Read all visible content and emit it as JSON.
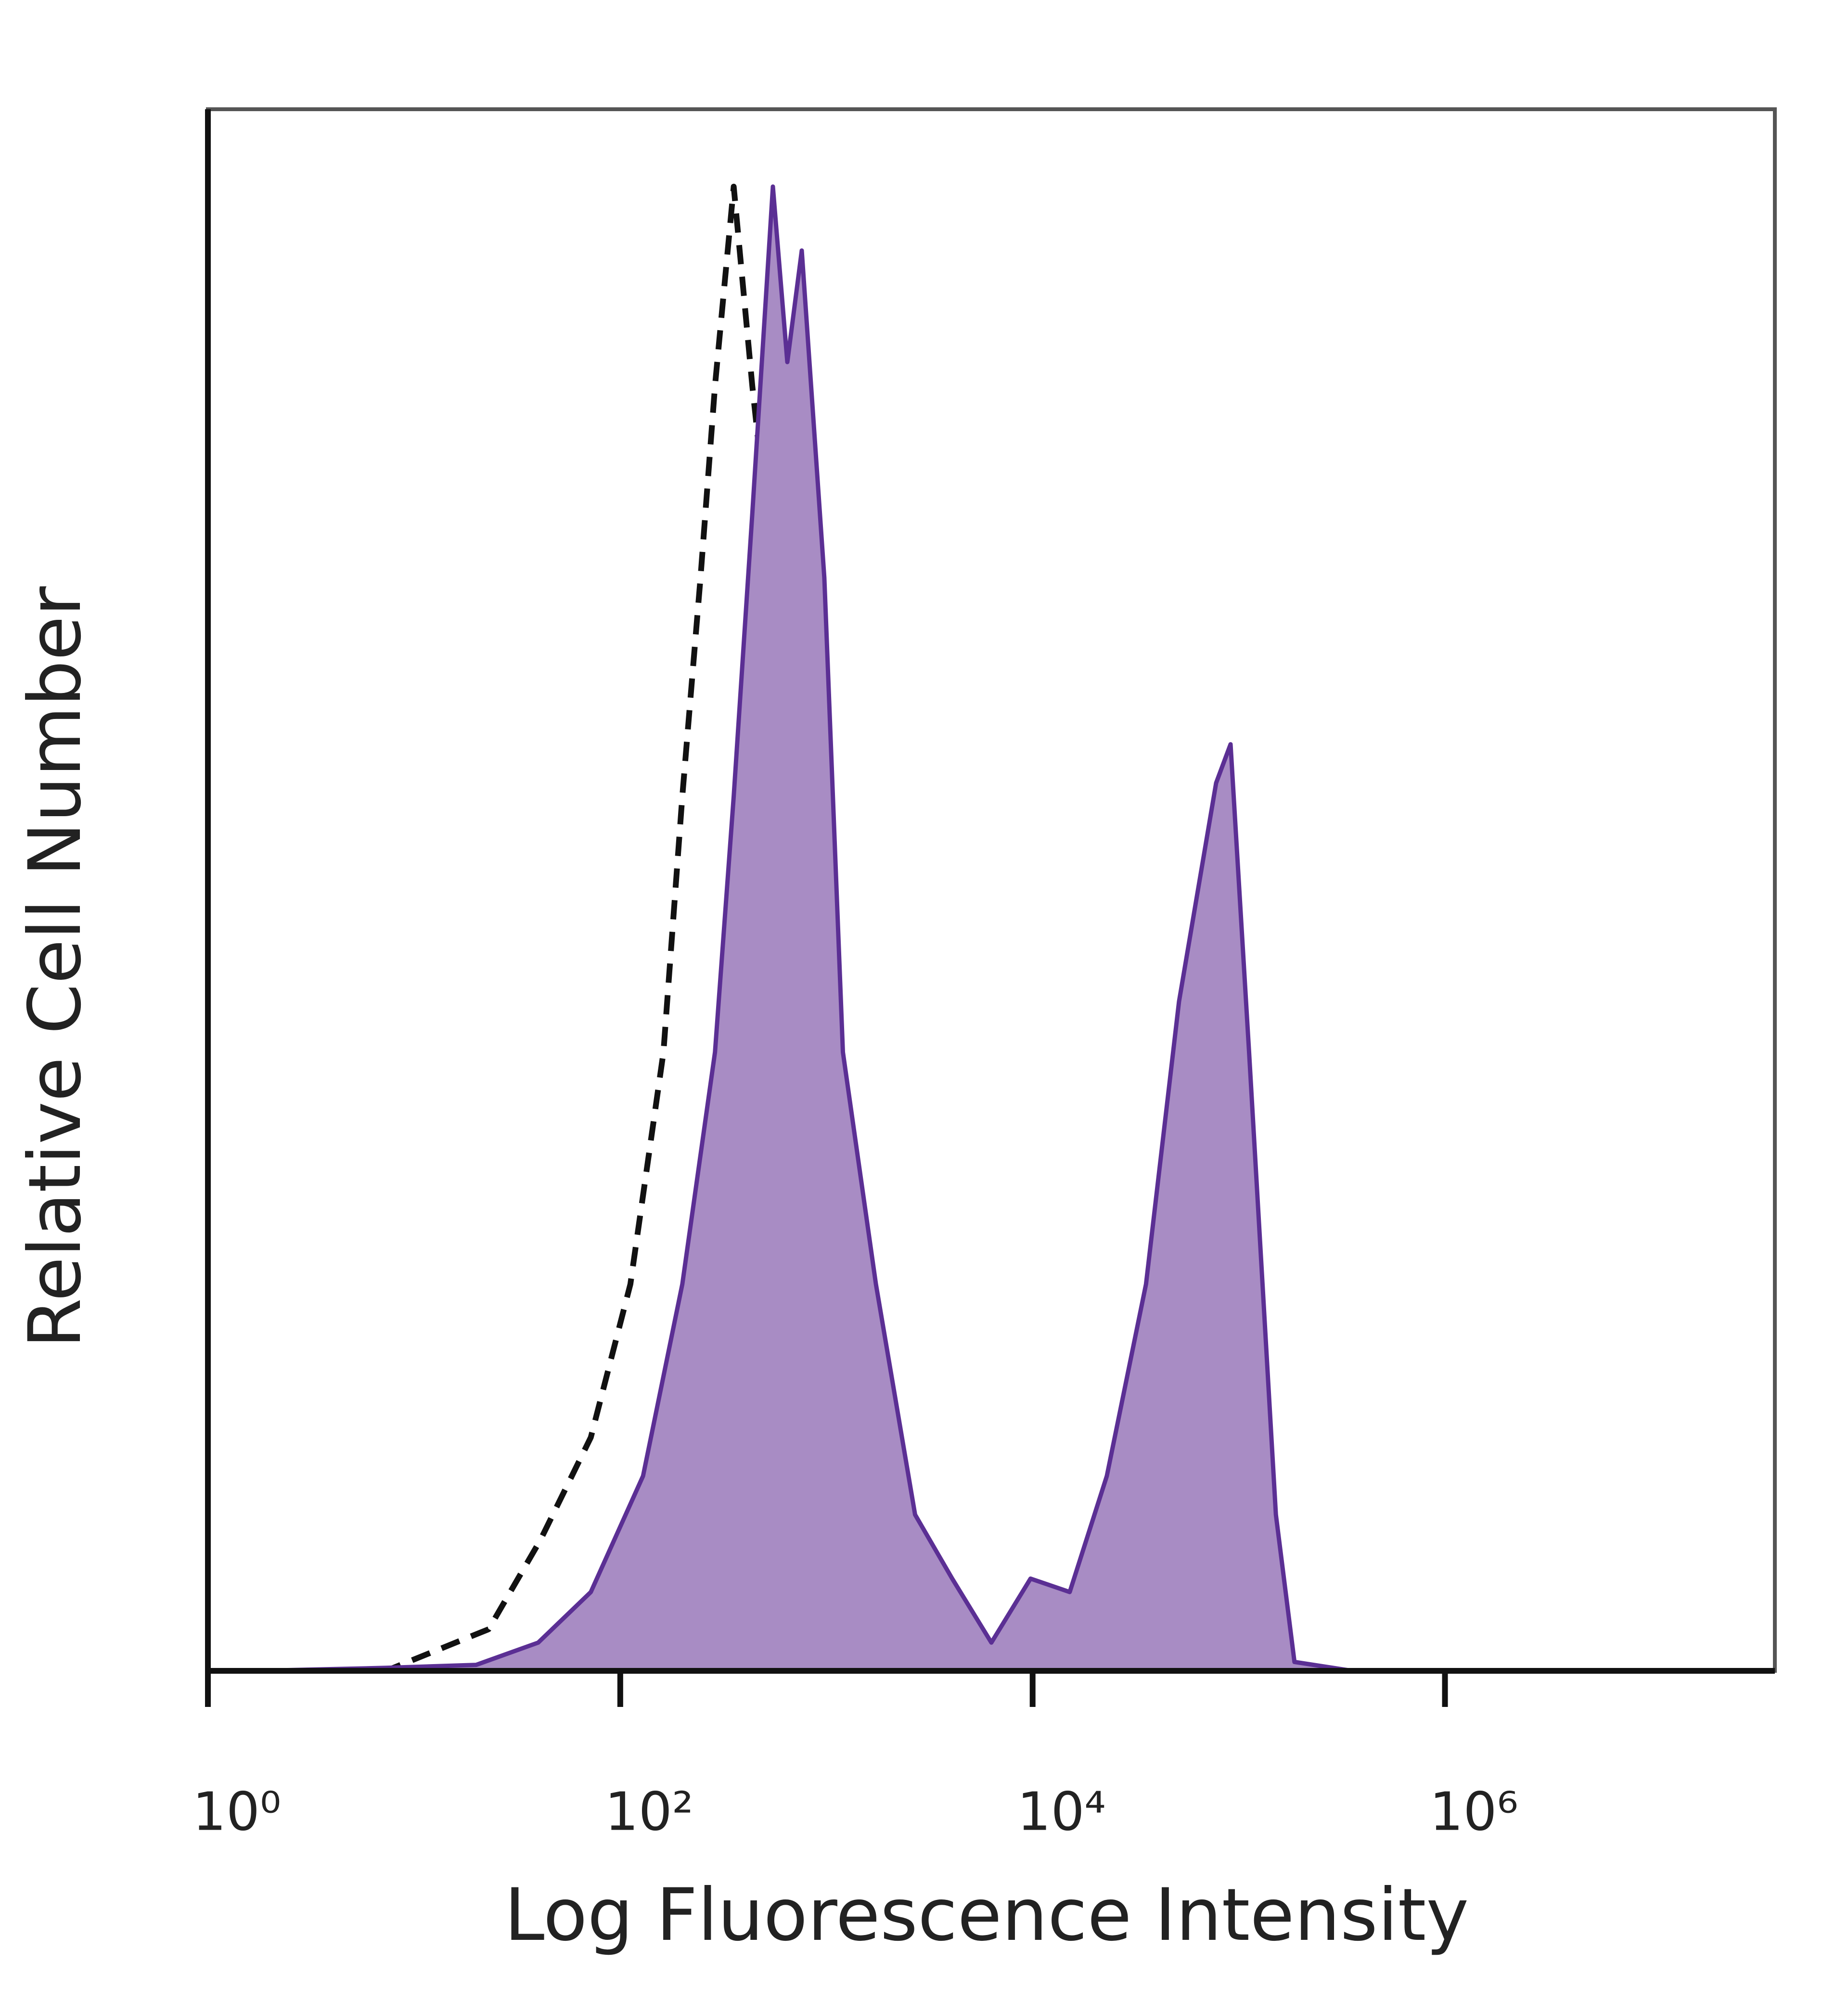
{
  "chart_data": {
    "type": "histogram-overlay",
    "xlabel": "Log Fluorescence Intensity",
    "ylabel": "Relative Cell Number",
    "xscale": "log",
    "xlim": [
      1,
      39810717
    ],
    "ylim": [
      0,
      105
    ],
    "xticks": [
      {
        "value": 1,
        "label": "10⁰"
      },
      {
        "value": 100,
        "label": "10²"
      },
      {
        "value": 10000,
        "label": "10⁴"
      },
      {
        "value": 1000000,
        "label": "10⁶"
      }
    ],
    "series": [
      {
        "color": "#5b2f94",
        "fill": "#a88cc4",
        "line_style": "solid",
        "x": [
          1.7,
          7.3,
          20,
          40,
          72,
          129,
          200,
          288,
          355,
          437,
          550,
          646,
          759,
          977,
          1202,
          1738,
          2692,
          4074,
          6310,
          9772,
          15136,
          22909,
          35481,
          51286,
          77625,
          91201,
          112202,
          151356,
          186209,
          354813,
          39810717
        ],
        "values": [
          0,
          0.2,
          0.4,
          1.9,
          5.3,
          13.1,
          26,
          41.6,
          58.8,
          77.8,
          99.8,
          88,
          95.5,
          73.5,
          41.6,
          26,
          10.5,
          6.2,
          1.9,
          6.2,
          5.3,
          13.1,
          26,
          45,
          59.7,
          62.3,
          41.6,
          10.5,
          0.6,
          0,
          0
        ]
      },
      {
        "color": "#111111",
        "fill": null,
        "line_style": "dashed",
        "x": [
          1.7,
          7.3,
          23,
          41,
          72,
          112,
          162,
          200,
          245,
          288,
          355,
          437,
          550,
          676,
          851,
          1122,
          1514,
          3090,
          9772,
          39810717
        ],
        "values": [
          0,
          0,
          2.8,
          8.8,
          15.7,
          26,
          41.6,
          58.8,
          73.5,
          86.4,
          99.8,
          86.4,
          73.5,
          41.6,
          21.7,
          6.2,
          0.6,
          0.2,
          0,
          0
        ]
      }
    ]
  }
}
